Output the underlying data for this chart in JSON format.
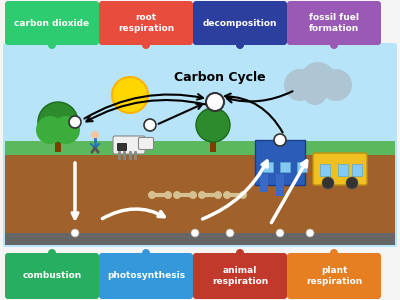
{
  "title": "Carbon Cycle",
  "bg_color": "#f0f0f0",
  "top_labels": [
    {
      "text": "carbon dioxide",
      "color": "#2ecc71",
      "text_color": "#ffffff"
    },
    {
      "text": "root\nrespiration",
      "color": "#e74c3c",
      "text_color": "#ffffff"
    },
    {
      "text": "decomposition",
      "color": "#2c3e9e",
      "text_color": "#ffffff"
    },
    {
      "text": "fossil fuel\nformation",
      "color": "#9b59b6",
      "text_color": "#ffffff"
    }
  ],
  "bottom_labels": [
    {
      "text": "combustion",
      "color": "#27ae60",
      "text_color": "#ffffff"
    },
    {
      "text": "photosynthesis",
      "color": "#3498db",
      "text_color": "#ffffff"
    },
    {
      "text": "animal\nrespiration",
      "color": "#c0392b",
      "text_color": "#ffffff"
    },
    {
      "text": "plant\nrespiration",
      "color": "#e67e22",
      "text_color": "#ffffff"
    }
  ],
  "top_dot_colors": [
    "#2ecc71",
    "#e74c3c",
    "#2c3e9e",
    "#9b59b6"
  ],
  "bottom_dot_colors": [
    "#27ae60",
    "#3498db",
    "#c0392b",
    "#e67e22"
  ],
  "scene_bg": "#87ceeb",
  "ground_color": "#8B6914",
  "grass_color": "#4caf50",
  "road_color": "#555555",
  "sun_color": "#FFD700",
  "cloud_color": "#6699cc",
  "smoke_color": "#888888",
  "arrow_color_black": "#000000",
  "arrow_color_white": "#ffffff",
  "node_color": "#ffffff",
  "node_edge": "#333333"
}
